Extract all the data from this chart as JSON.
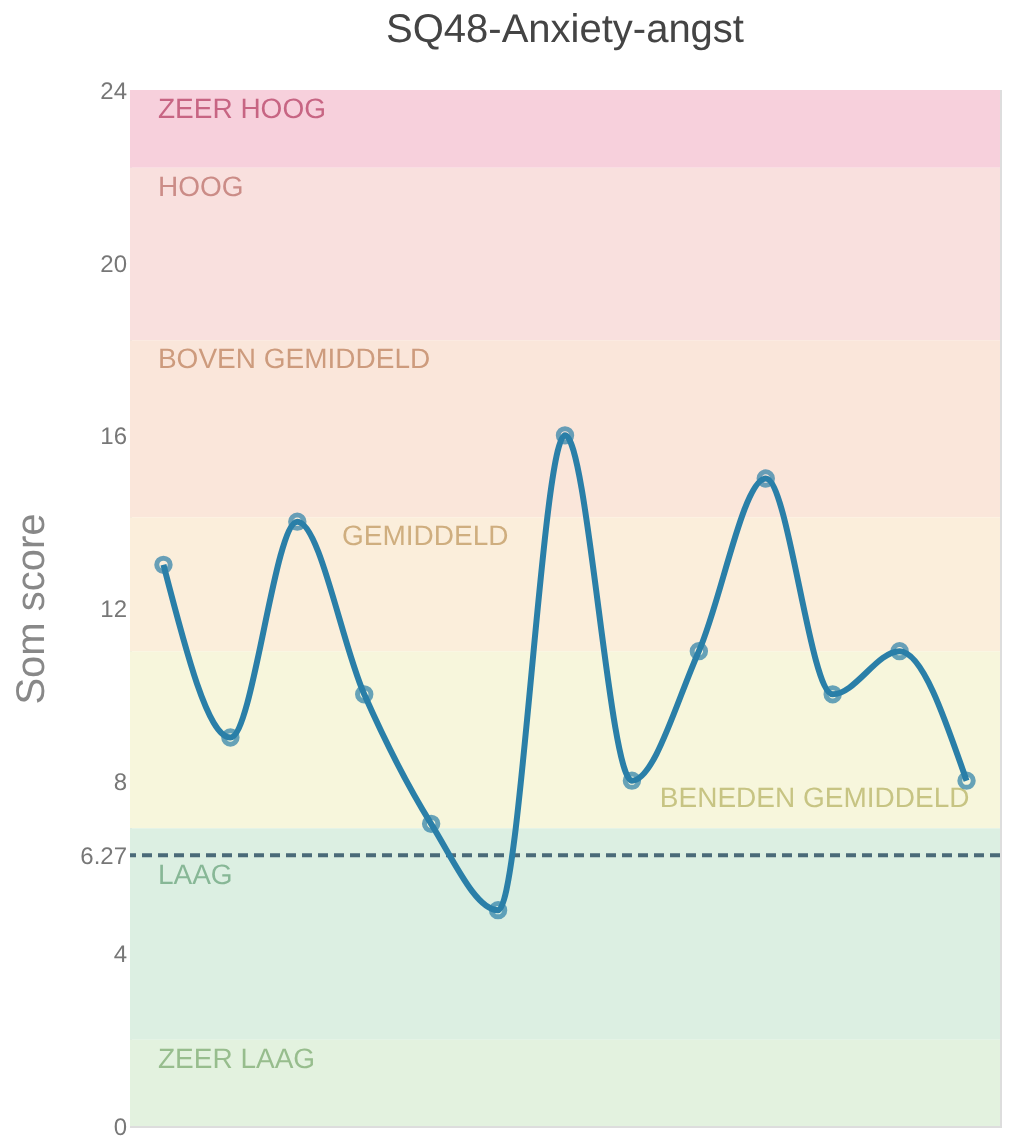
{
  "chart_data": {
    "type": "line",
    "title": "SQ48-Anxiety-angst",
    "ylabel": "Som score",
    "categories": [
      null,
      null,
      null,
      null,
      null,
      null,
      null,
      null,
      null,
      null,
      null,
      null,
      null
    ],
    "series": [
      {
        "color": "#2a7fa8",
        "values": [
          13,
          9,
          14,
          10,
          7,
          5,
          16,
          8,
          11,
          15,
          10,
          11,
          8
        ]
      }
    ],
    "ylim": [
      0,
      24
    ],
    "yticks": [
      0,
      4,
      {
        "value": 6.27,
        "label": "6.27"
      },
      8,
      12,
      16,
      20,
      24
    ],
    "bands": [
      {
        "axis": "y",
        "from": 22.2,
        "to": 24,
        "label": "ZEER HOOG",
        "color": "#f7d0dc"
      },
      {
        "axis": "y",
        "from": 18.2,
        "to": 22.2,
        "label": "HOOG",
        "color": "#f9e0de"
      },
      {
        "axis": "y",
        "from": 14.1,
        "to": 18.2,
        "label": "BOVEN GEMIDDELD",
        "color": "#fae6da"
      },
      {
        "axis": "y",
        "from": 11,
        "to": 14.1,
        "label": "GEMIDDELD",
        "color": "#fbeedb"
      },
      {
        "axis": "y",
        "from": 6.9,
        "to": 11,
        "label": "BENEDEN GEMIDDELD",
        "color": "#f7f6dc"
      },
      {
        "axis": "y",
        "from": 2,
        "to": 6.9,
        "label": "LAAG",
        "color": "#dcefe2"
      },
      {
        "axis": "y",
        "from": 0,
        "to": 2,
        "label": "ZEER LAAG",
        "color": "#e3f2df"
      }
    ],
    "ref_lines": [
      {
        "axis": "y",
        "value": 6.27,
        "label": null,
        "color": "#4a6a78",
        "line_style": "dashed"
      }
    ],
    "grid": false,
    "marker": "circle",
    "line_style": "solid",
    "tick_labels": "y"
  }
}
